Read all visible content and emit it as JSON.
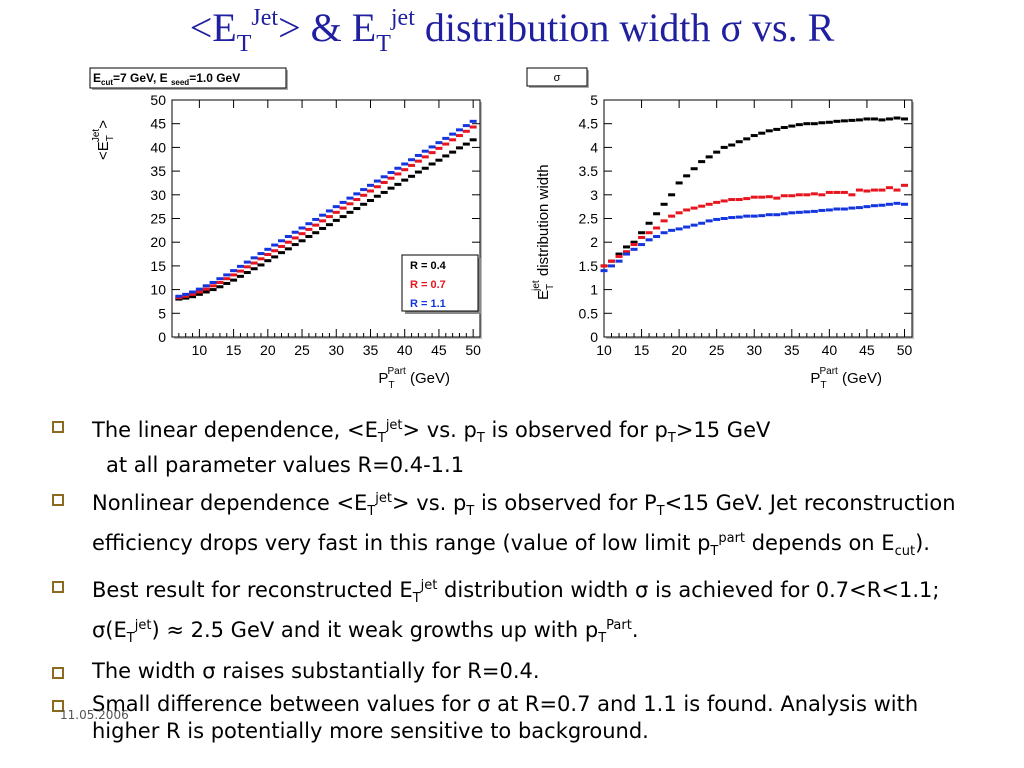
{
  "title": {
    "a": "<E",
    "a_sub": "T",
    "a_sup": "Jet",
    "b": ">  &  E",
    "b_sub": "T",
    "b_sup": "jet",
    "c": " distribution width σ vs. R"
  },
  "chart_data": [
    {
      "type": "scatter",
      "panel_label": "E_cut=7 GeV, E_seed=1.0 GeV",
      "ylabel": "<E_T^Jet>",
      "xlabel": "P_T^Part (GeV)",
      "xlim": [
        6,
        51
      ],
      "ylim": [
        0,
        50
      ],
      "xticks": [
        10,
        15,
        20,
        25,
        30,
        35,
        40,
        45,
        50
      ],
      "yticks": [
        0,
        5,
        10,
        15,
        20,
        25,
        30,
        35,
        40,
        45,
        50
      ],
      "legend": [
        "R = 0.4",
        "R = 0.7",
        "R = 1.1"
      ],
      "legend_position": "right",
      "series": [
        {
          "name": "R = 0.4",
          "color": "#000000",
          "x": [
            7,
            8,
            9,
            10,
            11,
            12,
            13,
            14,
            15,
            16,
            17,
            18,
            19,
            20,
            21,
            22,
            23,
            24,
            25,
            26,
            27,
            28,
            29,
            30,
            31,
            32,
            33,
            34,
            35,
            36,
            37,
            38,
            39,
            40,
            41,
            42,
            43,
            44,
            45,
            46,
            47,
            48,
            49,
            50
          ],
          "y": [
            8,
            8.2,
            8.5,
            9,
            9.5,
            10,
            10.6,
            11.3,
            12,
            12.8,
            13.6,
            14.4,
            15.2,
            16.1,
            16.9,
            17.8,
            18.6,
            19.5,
            20.3,
            21.2,
            22,
            22.9,
            23.7,
            24.6,
            25.4,
            26.3,
            27.1,
            28,
            28.8,
            29.7,
            30.5,
            31.4,
            32.2,
            33.1,
            33.9,
            34.8,
            35.6,
            36.5,
            37.3,
            38.2,
            39,
            39.9,
            40.7,
            41.6
          ]
        },
        {
          "name": "R = 0.7",
          "color": "#e8141e",
          "x": [
            7,
            8,
            9,
            10,
            11,
            12,
            13,
            14,
            15,
            16,
            17,
            18,
            19,
            20,
            21,
            22,
            23,
            24,
            25,
            26,
            27,
            28,
            29,
            30,
            31,
            32,
            33,
            34,
            35,
            36,
            37,
            38,
            39,
            40,
            41,
            42,
            43,
            44,
            45,
            46,
            47,
            48,
            49,
            50
          ],
          "y": [
            8.3,
            8.6,
            9,
            9.5,
            10.1,
            10.8,
            11.5,
            12.3,
            13.1,
            13.9,
            14.8,
            15.6,
            16.5,
            17.4,
            18.2,
            19.1,
            20,
            20.9,
            21.8,
            22.7,
            23.6,
            24.5,
            25.4,
            26.3,
            27.2,
            28.1,
            29,
            29.9,
            30.8,
            31.7,
            32.6,
            33.5,
            34.4,
            35.3,
            36.2,
            37.1,
            38,
            38.9,
            39.8,
            40.7,
            41.6,
            42.5,
            43.4,
            44.3
          ]
        },
        {
          "name": "R = 1.1",
          "color": "#1436e0",
          "x": [
            7,
            8,
            9,
            10,
            11,
            12,
            13,
            14,
            15,
            16,
            17,
            18,
            19,
            20,
            21,
            22,
            23,
            24,
            25,
            26,
            27,
            28,
            29,
            30,
            31,
            32,
            33,
            34,
            35,
            36,
            37,
            38,
            39,
            40,
            41,
            42,
            43,
            44,
            45,
            46,
            47,
            48,
            49,
            50
          ],
          "y": [
            8.6,
            9,
            9.5,
            10.1,
            10.8,
            11.5,
            12.3,
            13.1,
            14,
            14.9,
            15.8,
            16.7,
            17.6,
            18.5,
            19.4,
            20.3,
            21.2,
            22.1,
            23,
            23.9,
            24.8,
            25.7,
            26.6,
            27.5,
            28.4,
            29.3,
            30.2,
            31.1,
            32,
            32.9,
            33.8,
            34.7,
            35.6,
            36.5,
            37.4,
            38.3,
            39.2,
            40.1,
            41,
            41.9,
            42.8,
            43.7,
            44.6,
            45.5
          ]
        }
      ]
    },
    {
      "type": "scatter",
      "panel_label": "σ",
      "ylabel": "E_T^jet distribution  width",
      "xlabel": "P_T^Part (GeV)",
      "xlim": [
        10,
        51
      ],
      "ylim": [
        0,
        5
      ],
      "xticks": [
        10,
        15,
        20,
        25,
        30,
        35,
        40,
        45,
        50
      ],
      "yticks": [
        0,
        0.5,
        1,
        1.5,
        2,
        2.5,
        3,
        3.5,
        4,
        4.5,
        5
      ],
      "series": [
        {
          "name": "R = 0.4",
          "color": "#000000",
          "x": [
            10,
            11,
            12,
            13,
            14,
            15,
            16,
            17,
            18,
            19,
            20,
            21,
            22,
            23,
            24,
            25,
            26,
            27,
            28,
            29,
            30,
            31,
            32,
            33,
            34,
            35,
            36,
            37,
            38,
            39,
            40,
            41,
            42,
            43,
            44,
            45,
            46,
            47,
            48,
            49,
            50
          ],
          "y": [
            1.5,
            1.6,
            1.75,
            1.9,
            2.0,
            2.2,
            2.4,
            2.6,
            2.8,
            3.0,
            3.25,
            3.4,
            3.55,
            3.7,
            3.8,
            3.9,
            4.0,
            4.05,
            4.12,
            4.18,
            4.25,
            4.3,
            4.35,
            4.38,
            4.42,
            4.45,
            4.48,
            4.5,
            4.5,
            4.52,
            4.53,
            4.55,
            4.56,
            4.57,
            4.58,
            4.6,
            4.6,
            4.58,
            4.6,
            4.62,
            4.6
          ]
        },
        {
          "name": "R = 0.7",
          "color": "#e8141e",
          "x": [
            10,
            11,
            12,
            13,
            14,
            15,
            16,
            17,
            18,
            19,
            20,
            21,
            22,
            23,
            24,
            25,
            26,
            27,
            28,
            29,
            30,
            31,
            32,
            33,
            34,
            35,
            36,
            37,
            38,
            39,
            40,
            41,
            42,
            43,
            44,
            45,
            46,
            47,
            48,
            49,
            50
          ],
          "y": [
            1.5,
            1.6,
            1.7,
            1.8,
            1.95,
            2.1,
            2.2,
            2.3,
            2.45,
            2.55,
            2.62,
            2.68,
            2.72,
            2.76,
            2.8,
            2.84,
            2.87,
            2.9,
            2.9,
            2.92,
            2.95,
            2.95,
            2.96,
            2.93,
            2.98,
            2.98,
            3.0,
            3.0,
            3.02,
            3.0,
            3.05,
            3.05,
            3.05,
            3.0,
            3.1,
            3.08,
            3.1,
            3.1,
            3.15,
            3.1,
            3.2
          ]
        },
        {
          "name": "R = 1.1",
          "color": "#1436e0",
          "x": [
            10,
            11,
            12,
            13,
            14,
            15,
            16,
            17,
            18,
            19,
            20,
            21,
            22,
            23,
            24,
            25,
            26,
            27,
            28,
            29,
            30,
            31,
            32,
            33,
            34,
            35,
            36,
            37,
            38,
            39,
            40,
            41,
            42,
            43,
            44,
            45,
            46,
            47,
            48,
            49,
            50
          ],
          "y": [
            1.4,
            1.5,
            1.6,
            1.75,
            1.85,
            1.95,
            2.05,
            2.12,
            2.2,
            2.25,
            2.28,
            2.32,
            2.36,
            2.4,
            2.45,
            2.48,
            2.5,
            2.52,
            2.53,
            2.55,
            2.55,
            2.56,
            2.58,
            2.58,
            2.6,
            2.62,
            2.63,
            2.64,
            2.65,
            2.67,
            2.68,
            2.7,
            2.7,
            2.72,
            2.73,
            2.75,
            2.77,
            2.78,
            2.8,
            2.82,
            2.8
          ]
        }
      ]
    }
  ],
  "bullets": [
    {
      "parts": [
        {
          "t": "The linear dependence, <E"
        },
        {
          "sub": "T"
        },
        {
          "sup": "jet"
        },
        {
          "t": "> vs. p"
        },
        {
          "sub": "T"
        },
        {
          "t": " is observed for p"
        },
        {
          "sub": "T"
        },
        {
          "t": ">15 GeV"
        }
      ]
    },
    {
      "indent": true,
      "parts": [
        {
          "t": "at all parameter values R=0.4-1.1"
        }
      ]
    },
    {
      "parts": [
        {
          "t": "Nonlinear dependence <E"
        },
        {
          "sub": "T"
        },
        {
          "sup": "jet"
        },
        {
          "t": "> vs. p"
        },
        {
          "sub": "T"
        },
        {
          "t": " is observed for P"
        },
        {
          "sub": "T"
        },
        {
          "t": "<15 GeV. Jet reconstruction efficiency drops very fast in this range (value of low limit p"
        },
        {
          "sub": "T"
        },
        {
          "sup": "part"
        },
        {
          "t": "  depends on E"
        },
        {
          "sub": "cut"
        },
        {
          "t": ")."
        }
      ]
    },
    {
      "parts": [
        {
          "t": "Best result for reconstructed E"
        },
        {
          "sub": "T"
        },
        {
          "sup": "jet"
        },
        {
          "t": " distribution width σ is achieved for 0.7<R<1.1; σ(E"
        },
        {
          "sub": "T"
        },
        {
          "sup": "jet"
        },
        {
          "t": ") ≈ 2.5 GeV and it  weak growths up with p"
        },
        {
          "sub": "T"
        },
        {
          "sup": "Part"
        },
        {
          "t": "."
        }
      ]
    },
    {
      "parts": [
        {
          "t": " The width σ raises substantially for R=0.4."
        }
      ]
    },
    {
      "parts": [
        {
          "t": "Small difference between values for σ  at   R=0.7 and 1.1 is found. Analysis with higher R is potentially more sensitive to background."
        }
      ]
    }
  ],
  "date": "11.05.2006",
  "colors": {
    "title": "#1f1fa0",
    "bullet": "#8b6b1f"
  }
}
